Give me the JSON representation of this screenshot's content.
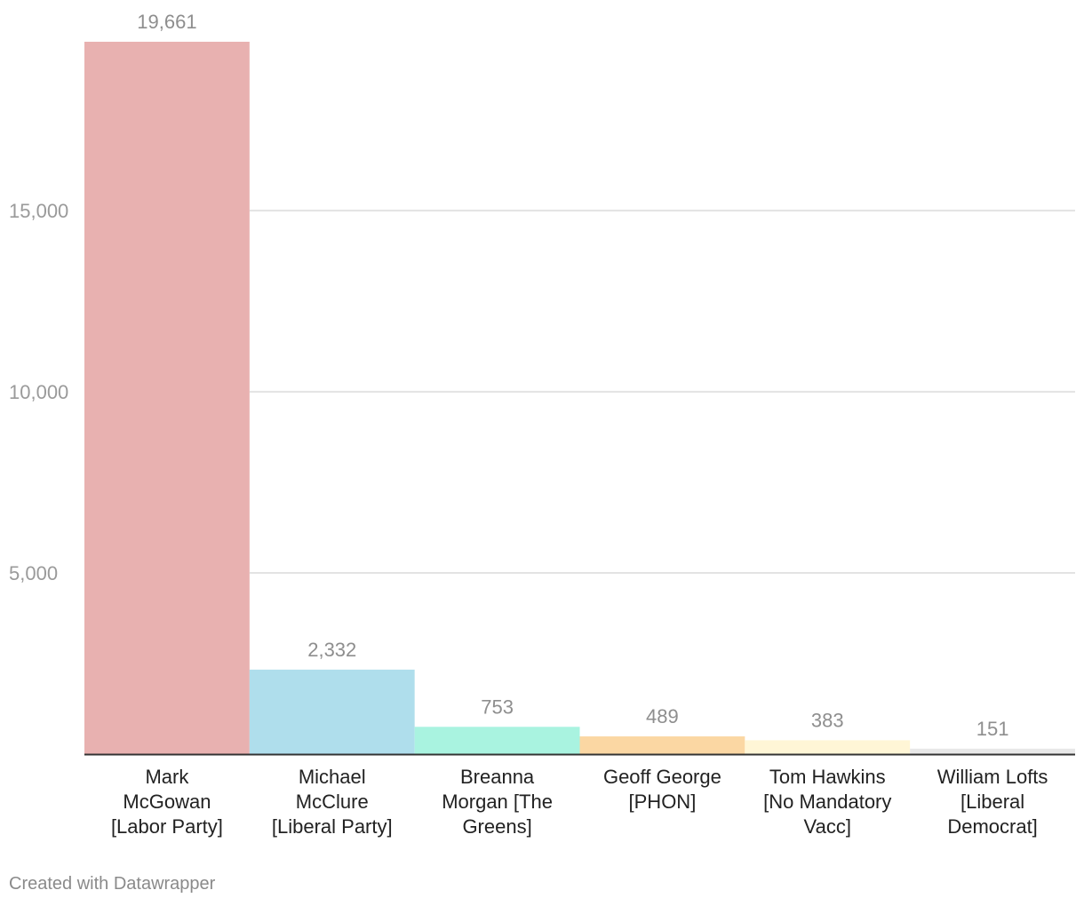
{
  "chart_data": {
    "type": "bar",
    "categories": [
      [
        "Mark",
        "McGowan",
        "[Labor Party]"
      ],
      [
        "Michael",
        "McClure",
        "[Liberal Party]"
      ],
      [
        "Breanna",
        "Morgan [The",
        "Greens]"
      ],
      [
        "Geoff George",
        "[PHON]"
      ],
      [
        "Tom Hawkins",
        "[No Mandatory",
        "Vacc]"
      ],
      [
        "William Lofts",
        "[Liberal",
        "Democrat]"
      ]
    ],
    "values": [
      19661,
      2332,
      753,
      489,
      383,
      151
    ],
    "value_labels": [
      "19,661",
      "2,332",
      "753",
      "489",
      "383",
      "151"
    ],
    "colors": [
      "#e8b1b0",
      "#afdeec",
      "#a9f3e0",
      "#fbd7a3",
      "#fff6d6",
      "#e8e8e8"
    ],
    "ylim": [
      0,
      19661
    ],
    "yticks": [
      5000,
      10000,
      15000
    ],
    "ytick_labels": [
      "5,000",
      "10,000",
      "15,000"
    ],
    "grid": true,
    "title": "",
    "xlabel": "",
    "ylabel": ""
  },
  "footer": {
    "credit": "Created with Datawrapper"
  }
}
